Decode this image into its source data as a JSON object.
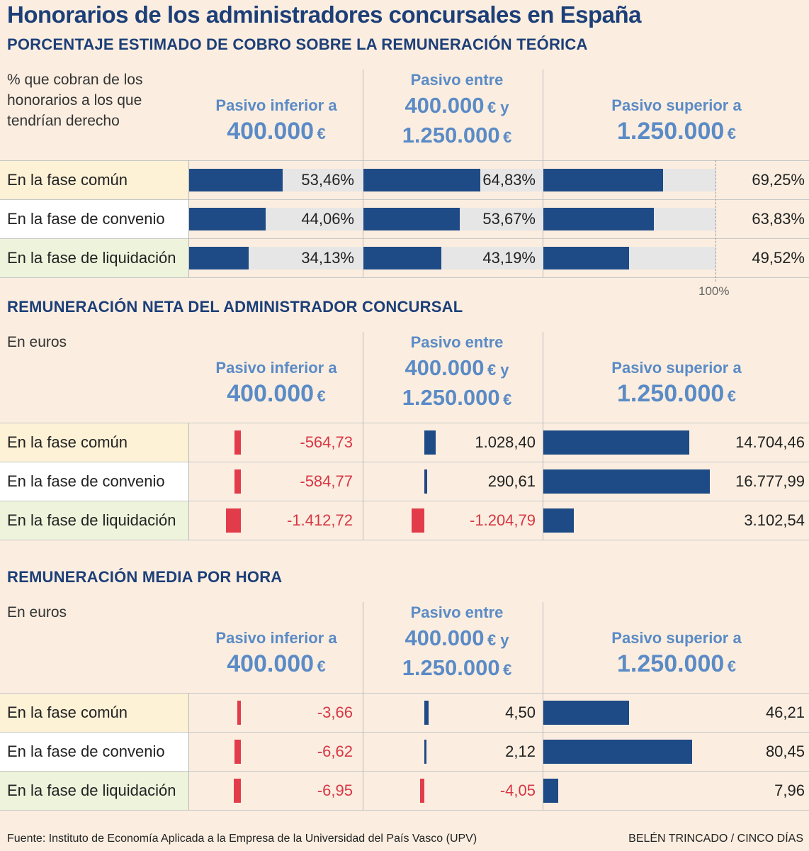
{
  "title": "Honorarios de los administradores concursales en España",
  "footer": {
    "source": "Fuente: Instituto de Economía Aplicada a la Empresa de la Universidad del País Vasco (UPV)",
    "credit": "BELÉN TRINCADO / CINCO DÍAS"
  },
  "columns": {
    "c1": {
      "l1": "Pasivo inferior a",
      "l2": "400.000",
      "eur": "€"
    },
    "c2": {
      "l1": "Pasivo entre",
      "l2": "400.000",
      "eur2": "€ y",
      "l3": "1.250.000",
      "eur3": "€"
    },
    "c3": {
      "l1": "Pasivo superior a",
      "l2": "1.250.000",
      "eur": "€"
    }
  },
  "rows": [
    "En la fase común",
    "En la fase de convenio",
    "En la fase de liquidación"
  ],
  "colors": {
    "positive": "#1e4a86",
    "negative": "#e23c4b",
    "track": "#e6e6e6",
    "header": "#5b8bc6"
  },
  "chart_data": [
    {
      "type": "bar",
      "title": "PORCENTAJE ESTIMADO DE COBRO SOBRE LA REMUNERACIÓN TEÓRICA",
      "note": "% que cobran de los honorarios a los que tendrían derecho",
      "axis_label": "100%",
      "categories": [
        "En la fase común",
        "En la fase de convenio",
        "En la fase de liquidación"
      ],
      "ylim": [
        0,
        100
      ],
      "series": [
        {
          "name": "Pasivo inferior a 400.000 €",
          "values": [
            53.46,
            44.06,
            34.13
          ],
          "labels": [
            "53,46%",
            "44,06%",
            "34,13%"
          ]
        },
        {
          "name": "Pasivo entre 400.000 € y 1.250.000 €",
          "values": [
            64.83,
            53.67,
            43.19
          ],
          "labels": [
            "64,83%",
            "53,67%",
            "43,19%"
          ]
        },
        {
          "name": "Pasivo superior a 1.250.000 €",
          "values": [
            69.25,
            63.83,
            49.52
          ],
          "labels": [
            "69,25%",
            "63,83%",
            "49,52%"
          ]
        }
      ]
    },
    {
      "type": "bar",
      "title": "REMUNERACIÓN NETA DEL ADMINISTRADOR CONCURSAL",
      "note": "En euros",
      "categories": [
        "En la fase común",
        "En la fase de convenio",
        "En la fase de liquidación"
      ],
      "series": [
        {
          "name": "Pasivo inferior a 400.000 €",
          "values": [
            -564.73,
            -584.77,
            -1412.72
          ],
          "labels": [
            "-564,73",
            "-584,77",
            "-1.412,72"
          ]
        },
        {
          "name": "Pasivo entre 400.000 € y 1.250.000 €",
          "values": [
            1028.4,
            290.61,
            -1204.79
          ],
          "labels": [
            "1.028,40",
            "290,61",
            "-1.204,79"
          ]
        },
        {
          "name": "Pasivo superior a 1.250.000 €",
          "values": [
            14704.46,
            16777.99,
            3102.54
          ],
          "labels": [
            "14.704,46",
            "16.777,99",
            "3.102,54"
          ]
        }
      ]
    },
    {
      "type": "bar",
      "title": "REMUNERACIÓN MEDIA POR HORA",
      "note": "En euros",
      "categories": [
        "En la fase común",
        "En la fase de convenio",
        "En la fase de liquidación"
      ],
      "series": [
        {
          "name": "Pasivo inferior a 400.000 €",
          "values": [
            -3.66,
            -6.62,
            -6.95
          ],
          "labels": [
            "-3,66",
            "-6,62",
            "-6,95"
          ]
        },
        {
          "name": "Pasivo entre 400.000 € y 1.250.000 €",
          "values": [
            4.5,
            2.12,
            -4.05
          ],
          "labels": [
            "4,50",
            "2,12",
            "-4,05"
          ]
        },
        {
          "name": "Pasivo superior a 1.250.000 €",
          "values": [
            46.21,
            80.45,
            7.96
          ],
          "labels": [
            "46,21",
            "80,45",
            "7,96"
          ]
        }
      ]
    }
  ]
}
